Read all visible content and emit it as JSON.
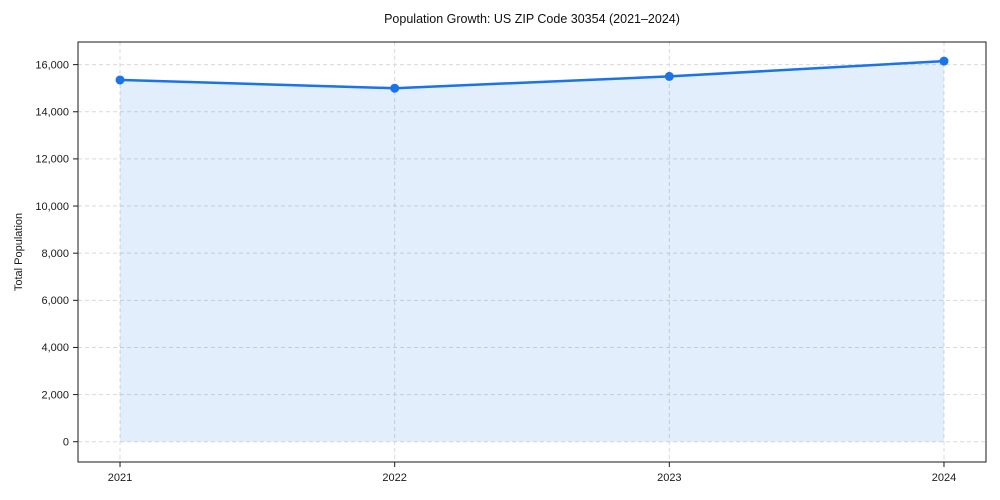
{
  "figure": {
    "background": "#ffffff"
  },
  "chart_data": {
    "type": "area",
    "title": "Population Growth: US ZIP Code 30354 (2021–2024)",
    "xlabel": "",
    "ylabel": "Total Population",
    "x": [
      2021,
      2022,
      2023,
      2024
    ],
    "series": [
      {
        "name": "Total Population",
        "values": [
          15350,
          15000,
          15500,
          16150
        ]
      }
    ],
    "fill_baseline": 0,
    "xticks": [
      2021,
      2022,
      2023,
      2024
    ],
    "yticks": [
      0,
      2000,
      4000,
      6000,
      8000,
      10000,
      12000,
      14000,
      16000
    ],
    "xlim": [
      2020.847,
      2024.153
    ],
    "ylim": [
      -860,
      16960
    ],
    "grid": true,
    "grid_style": "dashed",
    "legend_position": "none",
    "colors": {
      "line": "#1a73e8",
      "marker": "#1a73e8",
      "fill": "rgba(26,115,232,0.12)",
      "grid": "#d9d9d9",
      "spine": "#1a1a1a",
      "tick_text": "#1a1a1a",
      "title_text": "#111111"
    }
  }
}
